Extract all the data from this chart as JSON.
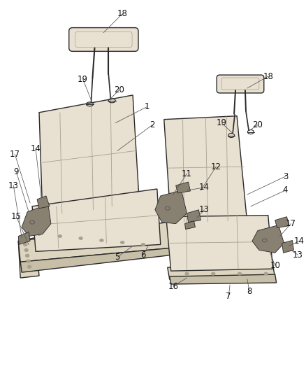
{
  "background_color": "#ffffff",
  "fig_width": 4.38,
  "fig_height": 5.33,
  "dpi": 100,
  "seat_fill": "#e8e0d0",
  "seat_edge": "#2a2a2a",
  "seat_shadow": "#c8bfa8",
  "seat_crease": "#aaa090",
  "platform_fill": "#ddd5c0",
  "bracket_fill": "#888070",
  "lw_main": 1.0,
  "lw_detail": 0.6,
  "lw_label": 0.5
}
